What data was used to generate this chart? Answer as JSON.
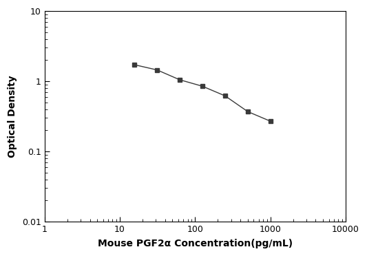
{
  "x": [
    15.625,
    31.25,
    62.5,
    125,
    250,
    500,
    1000
  ],
  "y": [
    1.72,
    1.45,
    1.05,
    0.85,
    0.62,
    0.37,
    0.27
  ],
  "xlim": [
    1,
    10000
  ],
  "ylim": [
    0.01,
    10
  ],
  "xlabel": "Mouse PGF2α Concentration(pg/mL)",
  "ylabel": "Optical Density",
  "line_color": "#3a3a3a",
  "marker": "s",
  "marker_size": 5,
  "marker_facecolor": "#3a3a3a",
  "marker_edgecolor": "#3a3a3a",
  "line_width": 1.0,
  "background_color": "#ffffff",
  "xticks": [
    1,
    10,
    100,
    1000,
    10000
  ],
  "yticks": [
    0.01,
    0.1,
    1,
    10
  ],
  "ytick_labels": [
    "0.01",
    "0.1",
    "1",
    "10"
  ],
  "xtick_labels": [
    "1",
    "10",
    "100",
    "1000",
    "10000"
  ]
}
